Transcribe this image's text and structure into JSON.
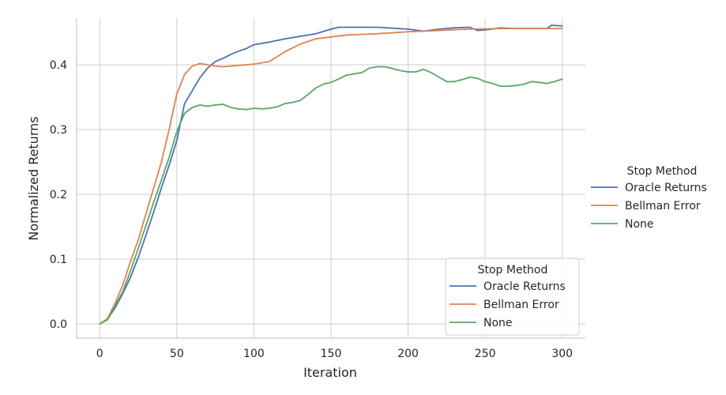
{
  "chart_data": {
    "type": "line",
    "xlabel": "Iteration",
    "ylabel": "Normalized Returns",
    "xlim": [
      -15,
      315
    ],
    "ylim": [
      -0.022,
      0.472
    ],
    "x_ticks": [
      0,
      50,
      100,
      150,
      200,
      250,
      300
    ],
    "y_ticks": [
      0.0,
      0.1,
      0.2,
      0.3,
      0.4
    ],
    "grid": true,
    "legend_title": "Stop Method",
    "legend_placement": [
      "right-outside",
      "lower-right"
    ],
    "series": [
      {
        "name": "Oracle Returns",
        "color": "#4c72b0",
        "x": [
          0,
          5,
          10,
          15,
          20,
          25,
          30,
          35,
          40,
          45,
          50,
          55,
          60,
          65,
          70,
          75,
          80,
          85,
          90,
          95,
          100,
          110,
          120,
          130,
          140,
          150,
          155,
          170,
          180,
          200,
          210,
          220,
          230,
          240,
          245,
          250,
          260,
          270,
          280,
          290,
          293,
          300
        ],
        "y": [
          0.0,
          0.007,
          0.025,
          0.047,
          0.072,
          0.103,
          0.137,
          0.173,
          0.21,
          0.245,
          0.283,
          0.34,
          0.36,
          0.38,
          0.395,
          0.405,
          0.41,
          0.416,
          0.421,
          0.425,
          0.431,
          0.435,
          0.44,
          0.444,
          0.448,
          0.455,
          0.458,
          0.458,
          0.458,
          0.455,
          0.452,
          0.455,
          0.457,
          0.458,
          0.453,
          0.454,
          0.457,
          0.456,
          0.456,
          0.456,
          0.461,
          0.46
        ]
      },
      {
        "name": "Bellman Error",
        "color": "#dd8452",
        "x": [
          0,
          5,
          10,
          15,
          20,
          25,
          30,
          35,
          40,
          45,
          50,
          55,
          60,
          65,
          70,
          75,
          80,
          90,
          100,
          110,
          120,
          130,
          140,
          150,
          160,
          170,
          180,
          200,
          220,
          240,
          260,
          280,
          290,
          300
        ],
        "y": [
          0.0,
          0.008,
          0.032,
          0.06,
          0.097,
          0.13,
          0.17,
          0.21,
          0.25,
          0.3,
          0.355,
          0.385,
          0.398,
          0.402,
          0.4,
          0.398,
          0.397,
          0.399,
          0.401,
          0.405,
          0.42,
          0.432,
          0.44,
          0.443,
          0.446,
          0.447,
          0.448,
          0.451,
          0.453,
          0.455,
          0.456,
          0.456,
          0.456,
          0.456
        ]
      },
      {
        "name": "None",
        "color": "#55a868",
        "x": [
          0,
          5,
          10,
          15,
          20,
          25,
          30,
          35,
          40,
          45,
          50,
          55,
          60,
          65,
          70,
          75,
          80,
          85,
          90,
          95,
          100,
          105,
          110,
          115,
          120,
          125,
          130,
          135,
          140,
          145,
          150,
          155,
          160,
          165,
          170,
          175,
          180,
          185,
          190,
          195,
          200,
          205,
          210,
          215,
          220,
          225,
          230,
          235,
          240,
          245,
          250,
          255,
          260,
          265,
          270,
          275,
          280,
          285,
          290,
          295,
          300
        ],
        "y": [
          0.0,
          0.006,
          0.028,
          0.05,
          0.082,
          0.117,
          0.152,
          0.188,
          0.222,
          0.257,
          0.297,
          0.325,
          0.334,
          0.338,
          0.336,
          0.338,
          0.339,
          0.334,
          0.332,
          0.331,
          0.333,
          0.332,
          0.333,
          0.335,
          0.34,
          0.342,
          0.345,
          0.354,
          0.364,
          0.37,
          0.373,
          0.378,
          0.384,
          0.386,
          0.388,
          0.395,
          0.397,
          0.397,
          0.394,
          0.391,
          0.389,
          0.389,
          0.393,
          0.388,
          0.381,
          0.374,
          0.374,
          0.377,
          0.381,
          0.379,
          0.374,
          0.371,
          0.367,
          0.367,
          0.368,
          0.37,
          0.374,
          0.373,
          0.371,
          0.374,
          0.378
        ]
      }
    ]
  }
}
